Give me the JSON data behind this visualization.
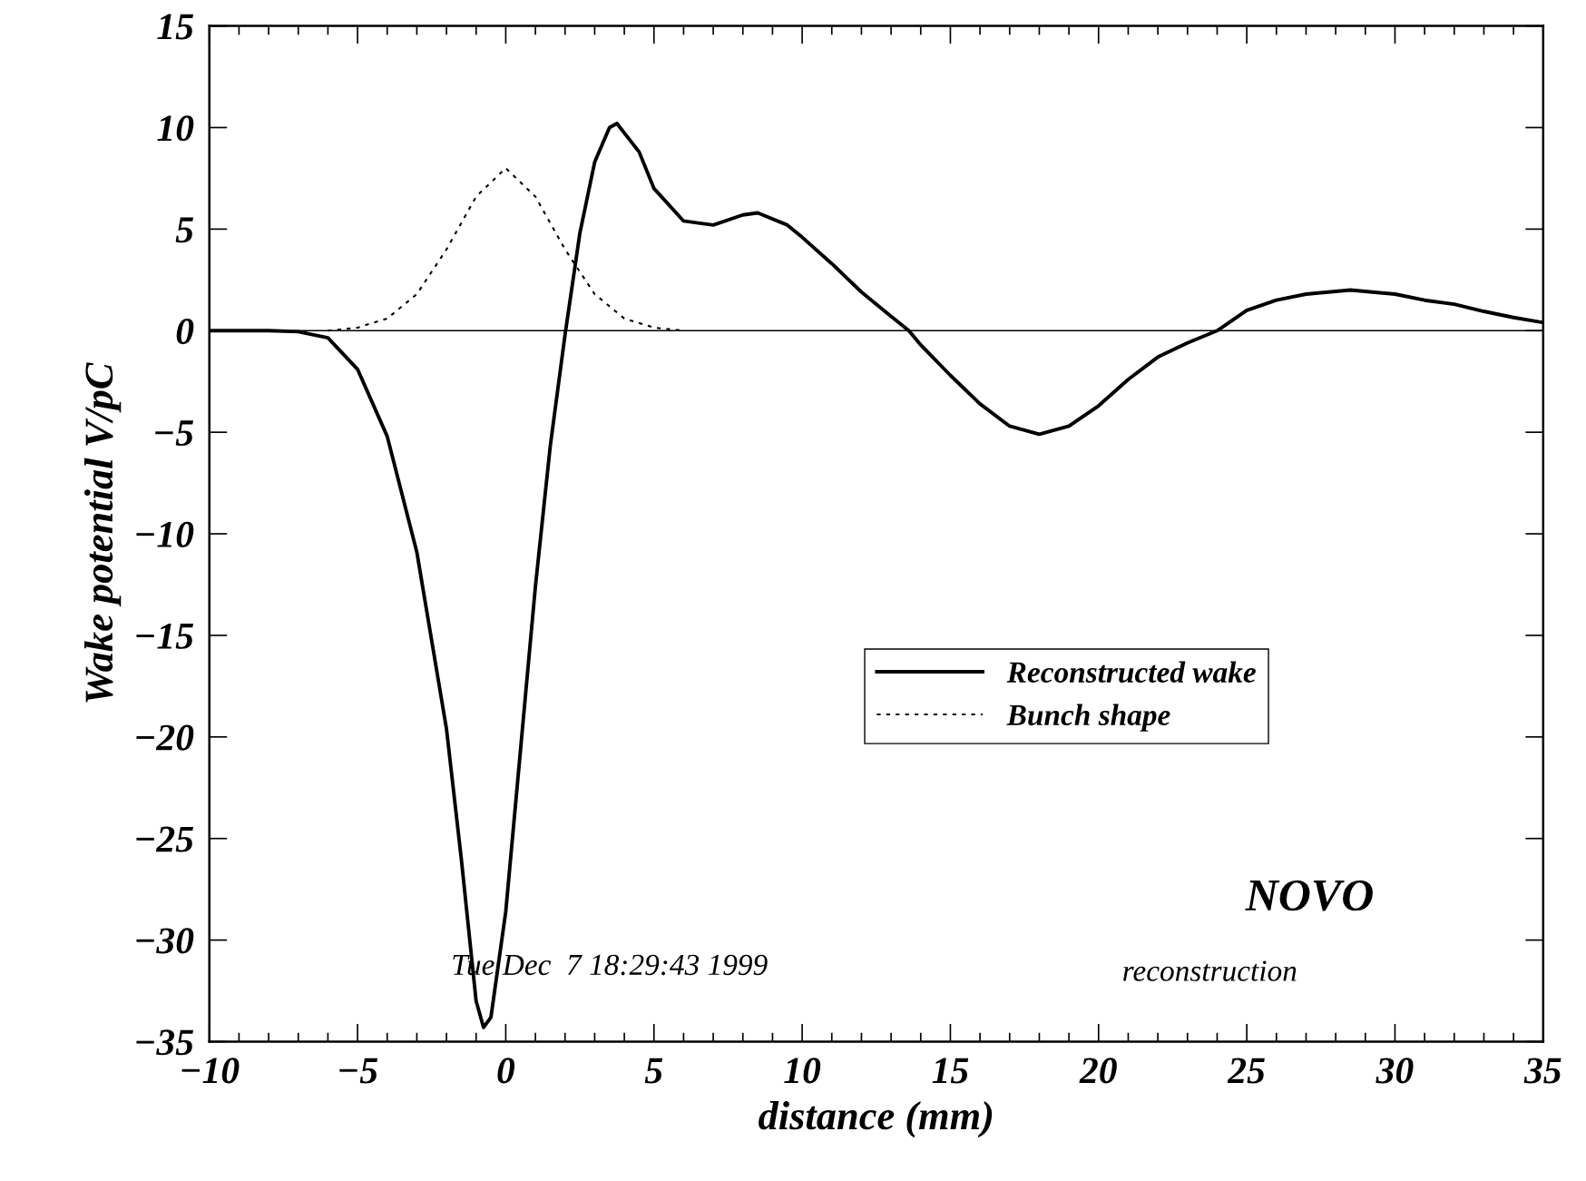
{
  "chart_data": {
    "type": "line",
    "xlabel": "distance (mm)",
    "ylabel": "Wake potential V/pC",
    "xlim": [
      -10,
      35
    ],
    "xticks": [
      {
        "value": -10,
        "label": "−10"
      },
      {
        "value": -5,
        "label": "−5"
      },
      0,
      5,
      10,
      15,
      20,
      25,
      30,
      35
    ],
    "ylim": [
      -35,
      15
    ],
    "yticks": [
      {
        "value": -35,
        "label": "−35"
      },
      {
        "value": -30,
        "label": "−30"
      },
      {
        "value": -25,
        "label": "−25"
      },
      {
        "value": -20,
        "label": "−20"
      },
      {
        "value": -15,
        "label": "−15"
      },
      {
        "value": -10,
        "label": "−10"
      },
      {
        "value": -5,
        "label": "−5"
      },
      0,
      5,
      10,
      15
    ],
    "grid": false,
    "legend": "center right",
    "marker": "none",
    "ref_lines": [
      {
        "axis": "y",
        "value": 0,
        "label": null,
        "color": "#000000",
        "line_style": "solid"
      }
    ],
    "annotations": [
      "Tue Dec  7 18:29:43 1999",
      "NOVO",
      "reconstruction"
    ],
    "series": [
      {
        "name": "Reconstructed wake",
        "color": "#000000",
        "line_style": "solid",
        "x": [
          -10,
          -8,
          -7,
          -6,
          -5,
          -4,
          -3,
          -2,
          -1.5,
          -1,
          -0.75,
          -0.5,
          0,
          0.5,
          1,
          1.5,
          2,
          2.5,
          3,
          3.5,
          3.75,
          4.5,
          5,
          6,
          7,
          8,
          8.5,
          9.5,
          10,
          11,
          12,
          13,
          13.6,
          14,
          15,
          16,
          17,
          18,
          19,
          20,
          21,
          22,
          23,
          24,
          25,
          26,
          27,
          28.5,
          30,
          31,
          32,
          33,
          34,
          35
        ],
        "values": [
          0,
          0,
          -0.05,
          -0.35,
          -1.9,
          -5.2,
          -10.9,
          -19.6,
          -26,
          -33,
          -34.3,
          -33.8,
          -28.6,
          -20.6,
          -12.6,
          -5.7,
          -0.2,
          4.8,
          8.3,
          10,
          10.2,
          8.8,
          7.0,
          5.4,
          5.2,
          5.7,
          5.8,
          5.2,
          4.6,
          3.3,
          1.9,
          0.7,
          0,
          -0.7,
          -2.2,
          -3.6,
          -4.7,
          -5.1,
          -4.7,
          -3.7,
          -2.4,
          -1.3,
          -0.6,
          0,
          1.0,
          1.5,
          1.8,
          2.0,
          1.8,
          1.5,
          1.3,
          0.95,
          0.65,
          0.4
        ]
      },
      {
        "name": "Bunch shape",
        "color": "#000000",
        "line_style": "dotted",
        "x": [
          -6,
          -5,
          -4,
          -3,
          -2,
          -1,
          0,
          1,
          2,
          3,
          4,
          5,
          6
        ],
        "values": [
          0,
          0.15,
          0.6,
          1.8,
          4.0,
          6.6,
          8,
          6.6,
          4.0,
          1.8,
          0.6,
          0.15,
          0
        ]
      }
    ]
  }
}
